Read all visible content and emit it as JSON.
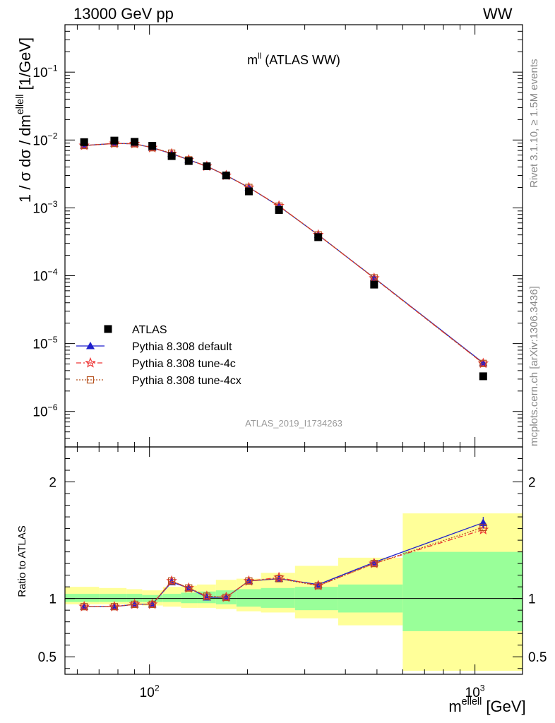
{
  "header": {
    "left": "13000 GeV pp",
    "right": "WW"
  },
  "side_notes": {
    "rivet": "Rivet 3.1.10, ≥ 1.5M events",
    "mcplots": "mcplots.cern.ch [arXiv:1306.3436]"
  },
  "chart_data": {
    "type": "scatter",
    "title_main": "m",
    "title_sup": "ll",
    "title_rest": " (ATLAS WW)",
    "watermark": "ATLAS_2019_I1734263",
    "xlabel_main": "m",
    "xlabel_sup": "ellell",
    "xlabel_rest": " [GeV]",
    "ylabel_main": "1 / σ  dσ / dm",
    "ylabel_sup": "ellell",
    "ylabel_rest": " [1/GeV]",
    "ratio_ylabel": "Ratio to ATLAS",
    "x_scale": "log",
    "xlim": [
      55,
      1400
    ],
    "ylim": [
      3e-07,
      0.5
    ],
    "ratio_ylim": [
      0.35,
      2.3
    ],
    "x_ticks": [
      {
        "v": 100,
        "base": "10",
        "exp": "2"
      },
      {
        "v": 1000,
        "base": "10",
        "exp": "3"
      }
    ],
    "y_ticks": [
      {
        "v": 0.1,
        "base": "10",
        "exp": "−1"
      },
      {
        "v": 0.01,
        "base": "10",
        "exp": "−2"
      },
      {
        "v": 0.001,
        "base": "10",
        "exp": "−3"
      },
      {
        "v": 0.0001,
        "base": "10",
        "exp": "−4"
      },
      {
        "v": 1e-05,
        "base": "10",
        "exp": "−5"
      },
      {
        "v": 1e-06,
        "base": "10",
        "exp": "−6"
      }
    ],
    "ratio_ticks": [
      {
        "v": 0.5,
        "label": "0.5"
      },
      {
        "v": 1,
        "label": "1"
      },
      {
        "v": 2,
        "label": "2"
      }
    ],
    "bins": [
      [
        55,
        70
      ],
      [
        70,
        85
      ],
      [
        85,
        95
      ],
      [
        95,
        110
      ],
      [
        110,
        125
      ],
      [
        125,
        140
      ],
      [
        140,
        160
      ],
      [
        160,
        185
      ],
      [
        185,
        220
      ],
      [
        220,
        280
      ],
      [
        280,
        380
      ],
      [
        380,
        600
      ],
      [
        600,
        1500
      ]
    ],
    "x": [
      63,
      78,
      90,
      102,
      117,
      132,
      150,
      172,
      202,
      250,
      330,
      490,
      1060
    ],
    "legend_position": "lower-left",
    "series": [
      {
        "name": "ATLAS",
        "marker": "square",
        "color": "#000000",
        "values": [
          0.0093,
          0.0098,
          0.0094,
          0.0082,
          0.0058,
          0.0049,
          0.0041,
          0.003,
          0.00175,
          0.00093,
          0.00037,
          7.4e-05,
          3.3e-06
        ]
      },
      {
        "name": "Pythia 8.308 default",
        "marker": "triangle",
        "line": "solid",
        "color": "#1f1fcc",
        "values": [
          0.0083,
          0.0089,
          0.0088,
          0.0077,
          0.0063,
          0.0051,
          0.0041,
          0.003,
          0.002,
          0.00106,
          0.0004,
          9.3e-05,
          5.2e-06
        ]
      },
      {
        "name": "Pythia 8.308 tune-4c",
        "marker": "star",
        "line": "dashdot",
        "color": "#ee3333",
        "values": [
          0.0083,
          0.0089,
          0.0088,
          0.0077,
          0.0063,
          0.0051,
          0.0041,
          0.003,
          0.002,
          0.00107,
          0.0004,
          9.2e-05,
          5.1e-06
        ]
      },
      {
        "name": "Pythia 8.308 tune-4cx",
        "marker": "open-square",
        "line": "dotted",
        "color": "#b5511e",
        "values": [
          0.0083,
          0.0089,
          0.0088,
          0.0077,
          0.0064,
          0.0051,
          0.0041,
          0.003,
          0.002,
          0.00106,
          0.0004,
          9.3e-05,
          5.1e-06
        ]
      }
    ],
    "ratio_series": [
      {
        "name": "Pythia 8.308 default",
        "values": [
          0.93,
          0.93,
          0.95,
          0.95,
          1.14,
          1.09,
          1.01,
          1.01,
          1.15,
          1.17,
          1.12,
          1.31,
          1.65
        ]
      },
      {
        "name": "Pythia 8.308 tune-4c",
        "values": [
          0.93,
          0.93,
          0.95,
          0.95,
          1.15,
          1.09,
          1.02,
          1.01,
          1.15,
          1.18,
          1.11,
          1.3,
          1.59
        ]
      },
      {
        "name": "Pythia 8.308 tune-4cx",
        "values": [
          0.93,
          0.93,
          0.95,
          0.95,
          1.15,
          1.09,
          1.02,
          1.01,
          1.15,
          1.17,
          1.11,
          1.3,
          1.61
        ]
      }
    ],
    "band_inner": [
      [
        0.97,
        1.04
      ],
      [
        0.97,
        1.04
      ],
      [
        0.97,
        1.04
      ],
      [
        0.97,
        1.03
      ],
      [
        0.97,
        1.04
      ],
      [
        0.96,
        1.05
      ],
      [
        0.96,
        1.06
      ],
      [
        0.95,
        1.07
      ],
      [
        0.93,
        1.08
      ],
      [
        0.92,
        1.09
      ],
      [
        0.9,
        1.1
      ],
      [
        0.88,
        1.12
      ],
      [
        0.72,
        1.4
      ]
    ],
    "band_outer": [
      [
        0.95,
        1.1
      ],
      [
        0.95,
        1.09
      ],
      [
        0.95,
        1.08
      ],
      [
        0.94,
        1.07
      ],
      [
        0.93,
        1.1
      ],
      [
        0.92,
        1.11
      ],
      [
        0.92,
        1.12
      ],
      [
        0.91,
        1.16
      ],
      [
        0.89,
        1.17
      ],
      [
        0.88,
        1.22
      ],
      [
        0.83,
        1.28
      ],
      [
        0.77,
        1.35
      ],
      [
        0.38,
        1.73
      ]
    ],
    "ratio_err_last": 0.05,
    "colors": {
      "band_inner": "#99ff99",
      "band_outer": "#ffff99",
      "data": "#000000"
    }
  }
}
